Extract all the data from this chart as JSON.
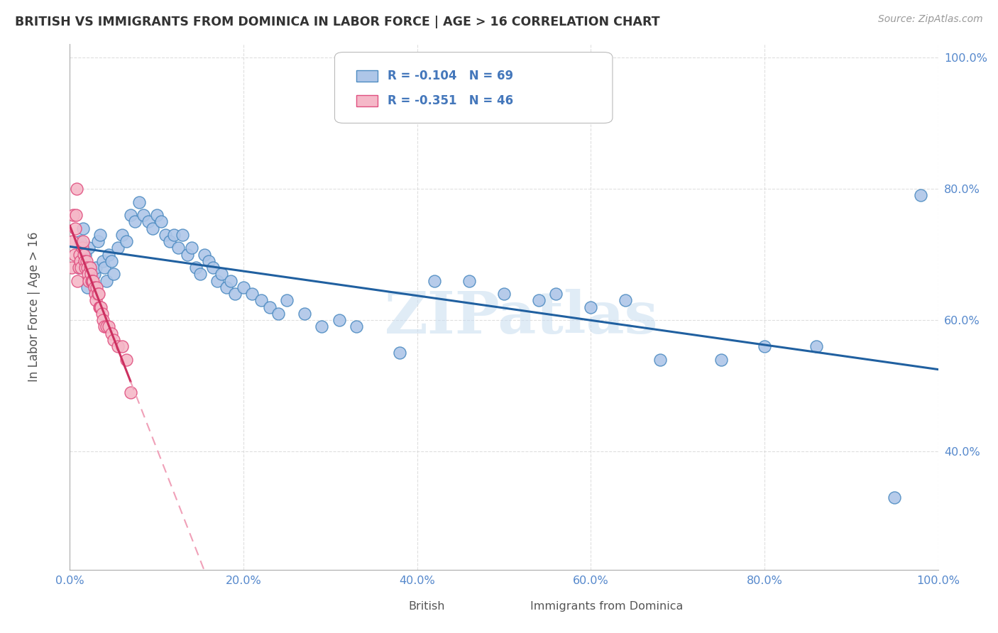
{
  "title": "BRITISH VS IMMIGRANTS FROM DOMINICA IN LABOR FORCE | AGE > 16 CORRELATION CHART",
  "source_text": "Source: ZipAtlas.com",
  "ylabel": "In Labor Force | Age > 16",
  "xlim": [
    0.0,
    1.0
  ],
  "ylim": [
    0.22,
    1.02
  ],
  "x_ticks": [
    0.0,
    0.2,
    0.4,
    0.6,
    0.8,
    1.0
  ],
  "x_tick_labels": [
    "0.0%",
    "20.0%",
    "40.0%",
    "60.0%",
    "80.0%",
    "100.0%"
  ],
  "y_ticks": [
    0.4,
    0.6,
    0.8,
    1.0
  ],
  "y_tick_labels": [
    "40.0%",
    "60.0%",
    "80.0%",
    "100.0%"
  ],
  "british_color": "#aec6e8",
  "dominica_color": "#f5b8c8",
  "british_edge": "#4e8cc2",
  "dominica_edge": "#e05080",
  "trend_british_color": "#2060a0",
  "trend_dominica_solid": "#cc3060",
  "trend_dominica_dash": "#f0a0b8",
  "legend_R_british": "-0.104",
  "legend_N_british": "69",
  "legend_R_dominica": "-0.351",
  "legend_N_dominica": "46",
  "watermark": "ZIPatlas",
  "british_x": [
    0.01,
    0.012,
    0.015,
    0.018,
    0.02,
    0.022,
    0.025,
    0.028,
    0.03,
    0.032,
    0.035,
    0.038,
    0.04,
    0.042,
    0.045,
    0.048,
    0.05,
    0.055,
    0.06,
    0.065,
    0.07,
    0.075,
    0.08,
    0.085,
    0.09,
    0.095,
    0.1,
    0.105,
    0.11,
    0.115,
    0.12,
    0.125,
    0.13,
    0.135,
    0.14,
    0.145,
    0.15,
    0.155,
    0.16,
    0.165,
    0.17,
    0.175,
    0.18,
    0.185,
    0.19,
    0.2,
    0.21,
    0.22,
    0.23,
    0.24,
    0.25,
    0.27,
    0.29,
    0.31,
    0.33,
    0.38,
    0.42,
    0.46,
    0.5,
    0.54,
    0.56,
    0.6,
    0.64,
    0.68,
    0.75,
    0.8,
    0.86,
    0.95,
    0.98
  ],
  "british_y": [
    0.68,
    0.72,
    0.74,
    0.7,
    0.65,
    0.71,
    0.66,
    0.67,
    0.68,
    0.72,
    0.73,
    0.69,
    0.68,
    0.66,
    0.7,
    0.69,
    0.67,
    0.71,
    0.73,
    0.72,
    0.76,
    0.75,
    0.78,
    0.76,
    0.75,
    0.74,
    0.76,
    0.75,
    0.73,
    0.72,
    0.73,
    0.71,
    0.73,
    0.7,
    0.71,
    0.68,
    0.67,
    0.7,
    0.69,
    0.68,
    0.66,
    0.67,
    0.65,
    0.66,
    0.64,
    0.65,
    0.64,
    0.63,
    0.62,
    0.61,
    0.63,
    0.61,
    0.59,
    0.6,
    0.59,
    0.55,
    0.66,
    0.66,
    0.64,
    0.63,
    0.64,
    0.62,
    0.63,
    0.54,
    0.54,
    0.56,
    0.56,
    0.33,
    0.79
  ],
  "dominica_x": [
    0.002,
    0.003,
    0.004,
    0.005,
    0.006,
    0.007,
    0.008,
    0.009,
    0.01,
    0.011,
    0.012,
    0.013,
    0.014,
    0.015,
    0.016,
    0.017,
    0.018,
    0.019,
    0.02,
    0.021,
    0.022,
    0.023,
    0.024,
    0.025,
    0.026,
    0.027,
    0.028,
    0.029,
    0.03,
    0.031,
    0.032,
    0.033,
    0.034,
    0.035,
    0.036,
    0.037,
    0.038,
    0.04,
    0.042,
    0.045,
    0.048,
    0.05,
    0.055,
    0.06,
    0.065,
    0.07
  ],
  "dominica_y": [
    0.68,
    0.72,
    0.76,
    0.7,
    0.74,
    0.76,
    0.8,
    0.66,
    0.68,
    0.7,
    0.69,
    0.68,
    0.71,
    0.72,
    0.7,
    0.69,
    0.68,
    0.69,
    0.68,
    0.67,
    0.66,
    0.68,
    0.67,
    0.66,
    0.66,
    0.66,
    0.65,
    0.64,
    0.63,
    0.65,
    0.64,
    0.64,
    0.62,
    0.62,
    0.62,
    0.61,
    0.6,
    0.59,
    0.59,
    0.59,
    0.58,
    0.57,
    0.56,
    0.56,
    0.54,
    0.49
  ]
}
